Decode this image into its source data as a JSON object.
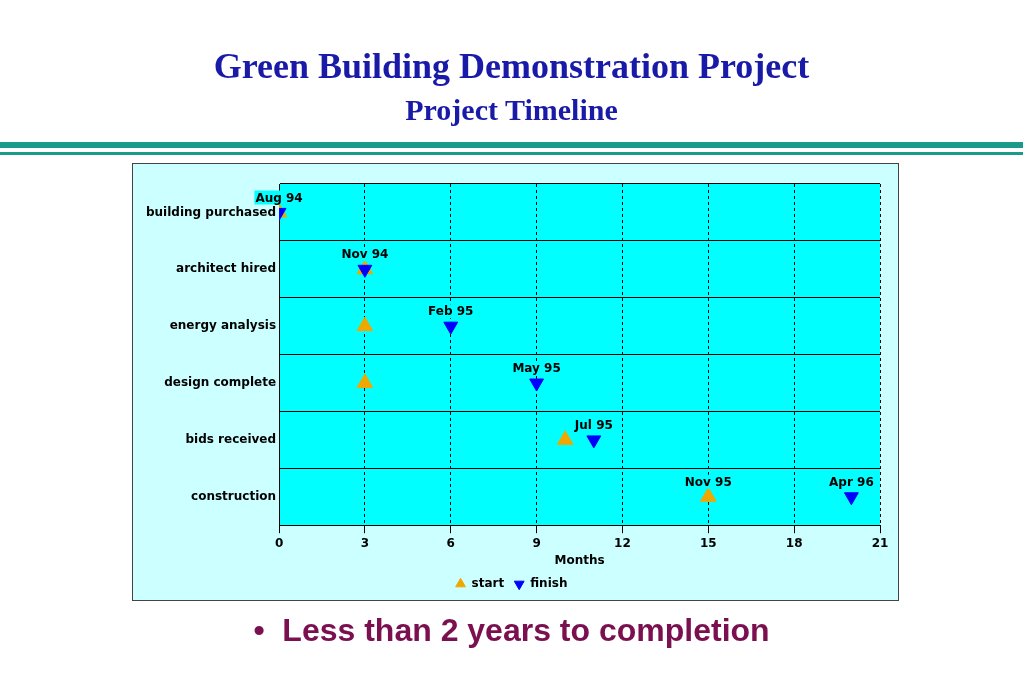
{
  "chart_data": {
    "type": "scatter",
    "orientation": "horizontal",
    "title": "Green Building Demonstration Project",
    "subtitle": "Project Timeline",
    "xlabel": "Months",
    "categories": [
      "building purchased",
      "architect hired",
      "energy analysis",
      "design complete",
      "bids received",
      "construction"
    ],
    "series": [
      {
        "name": "start",
        "color": "#f0a800",
        "marker": "triangle",
        "values": [
          0,
          3,
          3,
          3,
          10,
          15
        ]
      },
      {
        "name": "finish",
        "color": "#0000ff",
        "marker": "triangle",
        "values": [
          0,
          3,
          6,
          9,
          11,
          20
        ]
      }
    ],
    "xlim": [
      0,
      21
    ],
    "xticks": [
      0,
      3,
      6,
      9,
      12,
      15,
      18,
      21
    ],
    "grid": true,
    "legend": "bottom",
    "annotations": [
      {
        "text": "Aug 94",
        "x": 0,
        "y": "building purchased"
      },
      {
        "text": "Nov 94",
        "x": 3,
        "y": "architect hired"
      },
      {
        "text": "Feb 95",
        "x": 6,
        "y": "energy analysis"
      },
      {
        "text": "May 95",
        "x": 9,
        "y": "design complete"
      },
      {
        "text": "Jul 95",
        "x": 11,
        "y": "bids received"
      },
      {
        "text": "Nov 95",
        "x": 15,
        "y": "construction"
      },
      {
        "text": "Apr 96",
        "x": 20,
        "y": "construction"
      },
      "•  Less than 2 years to completion"
    ]
  }
}
